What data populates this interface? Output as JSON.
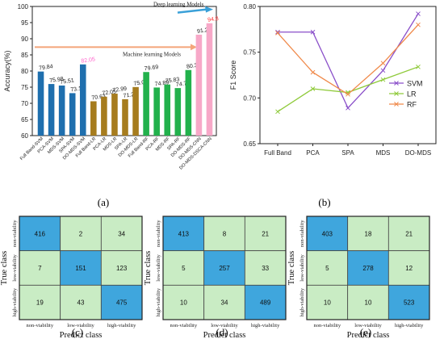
{
  "panel_labels": [
    "(a)",
    "(b)",
    "(c)",
    "(d)",
    "(e)"
  ],
  "chart_data": [
    {
      "type": "bar",
      "panel": "(a)",
      "ylabel": "Accuracy(%)",
      "ylim": [
        60,
        100
      ],
      "yticks": [
        60,
        65,
        70,
        75,
        80,
        85,
        90,
        95,
        100
      ],
      "categories": [
        "Full Band-SVM",
        "PCA-SVM",
        "MDS-SVM",
        "SPA-SVM",
        "DO-MDS-SVM",
        "Full Band-LR",
        "PCA-LR",
        "MDS-LR",
        "SPA-LR",
        "DO-MDS-LR",
        "Full Band-RF",
        "PCA-RF",
        "MDS-RF",
        "SPA-RF",
        "DO-MDS-RF",
        "DO-MDS-CNN",
        "DO-MDS-DSCA-CNN"
      ],
      "values": [
        79.84,
        75.98,
        75.51,
        73.15,
        82.05,
        70.63,
        72.05,
        72.99,
        71.28,
        75.04,
        79.69,
        74.89,
        75.83,
        74.72,
        80.31,
        91.26,
        94.8
      ],
      "value_labels": [
        "79.84",
        "75.98",
        "75.51",
        "73.15",
        "82.05",
        "70.63",
        "72.05",
        "72.99",
        "71.28",
        "75.04",
        "79.69",
        "74.89",
        "75.83",
        "74.72",
        "80.31",
        "91.26",
        "94.8"
      ],
      "bar_colors": [
        "#1f6fae",
        "#1f6fae",
        "#1f6fae",
        "#1f6fae",
        "#1f6fae",
        "#a67c1e",
        "#a67c1e",
        "#a67c1e",
        "#a67c1e",
        "#a67c1e",
        "#22b14c",
        "#22b14c",
        "#22b14c",
        "#22b14c",
        "#22b14c",
        "#f7a8c8",
        "#f7a8c8"
      ],
      "highlight_label_colors": {
        "4": "#ff66cc",
        "16": "#ff3333"
      },
      "annotations": [
        {
          "text": "Machine learning Models",
          "arrow_color": "#f4a57a"
        },
        {
          "text": "Deep learning Models",
          "arrow_color": "#3aa0d8"
        }
      ]
    },
    {
      "type": "line",
      "panel": "(b)",
      "ylabel": "F1 Score",
      "ylim": [
        0.65,
        0.8
      ],
      "yticks": [
        0.65,
        0.7,
        0.75,
        0.8
      ],
      "categories": [
        "Full Band",
        "PCA",
        "SPA",
        "MDS",
        "DO-MDS"
      ],
      "legend_position": "right",
      "series": [
        {
          "name": "SVM",
          "color": "#8a4fc9",
          "values": [
            0.772,
            0.772,
            0.689,
            0.73,
            0.792
          ]
        },
        {
          "name": "LR",
          "color": "#8fca3a",
          "values": [
            0.685,
            0.71,
            0.706,
            0.72,
            0.734
          ]
        },
        {
          "name": "RF",
          "color": "#f08a4b",
          "values": [
            0.771,
            0.728,
            0.704,
            0.738,
            0.78
          ]
        }
      ]
    },
    {
      "type": "heatmap",
      "panel": "(c)",
      "xlabel": "Predict class",
      "ylabel": "True class",
      "classes": [
        "non-viability",
        "low-viability",
        "high-viability"
      ],
      "matrix": [
        [
          416,
          2,
          34
        ],
        [
          7,
          151,
          123
        ],
        [
          19,
          43,
          475
        ]
      ]
    },
    {
      "type": "heatmap",
      "panel": "(d)",
      "xlabel": "Predict class",
      "ylabel": "True class",
      "classes": [
        "non-viability",
        "low-viability",
        "high-viability"
      ],
      "matrix": [
        [
          413,
          8,
          21
        ],
        [
          5,
          257,
          33
        ],
        [
          10,
          34,
          489
        ]
      ]
    },
    {
      "type": "heatmap",
      "panel": "(e)",
      "xlabel": "Predict class",
      "ylabel": "True class",
      "classes": [
        "non-viability",
        "low-viability",
        "high-viability"
      ],
      "matrix": [
        [
          403,
          18,
          21
        ],
        [
          5,
          278,
          12
        ],
        [
          10,
          10,
          523
        ]
      ]
    }
  ],
  "colors": {
    "diag_cell": "#3fa6dd",
    "off_cell": "#c9ecc4",
    "cm_border": "#444444"
  }
}
